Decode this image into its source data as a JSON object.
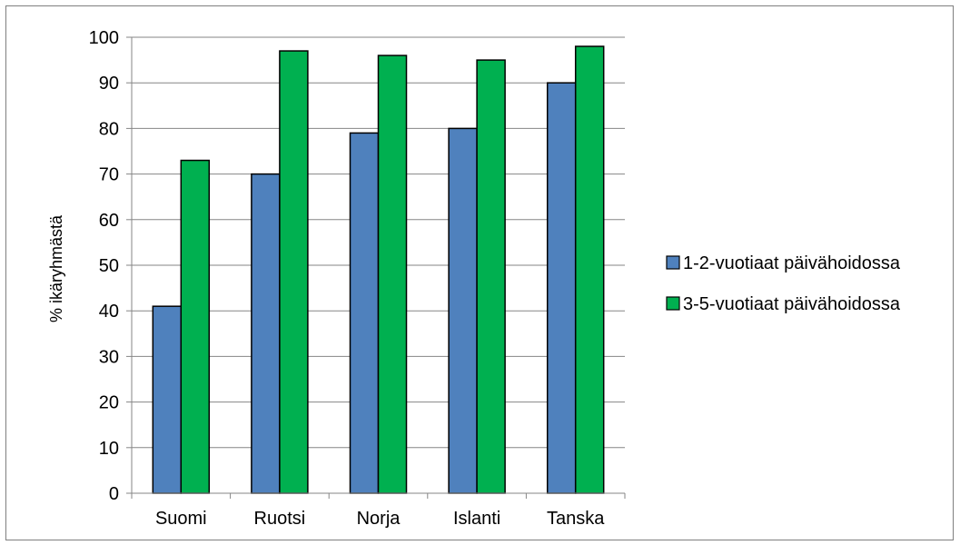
{
  "chart_data": {
    "type": "bar",
    "categories": [
      "Suomi",
      "Ruotsi",
      "Norja",
      "Islanti",
      "Tanska"
    ],
    "series": [
      {
        "name": "1-2-vuotiaat päivähoidossa",
        "values": [
          41,
          70,
          79,
          80,
          90
        ],
        "color": "#4f81bd"
      },
      {
        "name": "3-5-vuotiaat päivähoidossa",
        "values": [
          73,
          97,
          96,
          95,
          98
        ],
        "color": "#00b050"
      }
    ],
    "ylabel": "% ikäryhmästä",
    "xlabel": "",
    "ylim": [
      0,
      100
    ],
    "yticks": [
      0,
      10,
      20,
      30,
      40,
      50,
      60,
      70,
      80,
      90,
      100
    ],
    "grid": true,
    "legend_position": "right"
  }
}
